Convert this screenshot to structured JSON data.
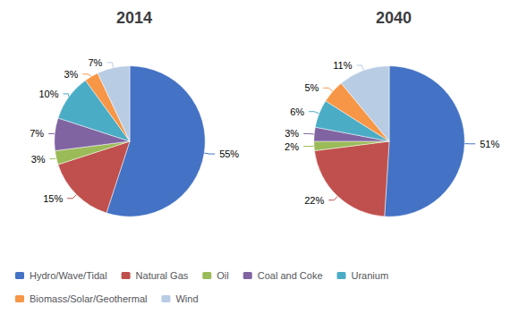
{
  "chart_data": [
    {
      "type": "pie",
      "title": "2014",
      "categories": [
        "Hydro/Wave/Tidal",
        "Natural Gas",
        "Oil",
        "Coal and Coke",
        "Uranium",
        "Biomass/Solar/Geothermal",
        "Wind"
      ],
      "values": [
        55,
        15,
        3,
        7,
        10,
        3,
        7
      ],
      "value_labels": [
        "55%",
        "15%",
        "3%",
        "7%",
        "10%",
        "3%",
        "7%"
      ],
      "colors": [
        "#4472C4",
        "#C0504D",
        "#9BBB59",
        "#8064A2",
        "#4BACC6",
        "#F79646",
        "#B8CCE4"
      ],
      "data_labels": true,
      "legend": "lower left"
    },
    {
      "type": "pie",
      "title": "2040",
      "categories": [
        "Hydro/Wave/Tidal",
        "Natural Gas",
        "Oil",
        "Coal and Coke",
        "Uranium",
        "Biomass/Solar/Geothermal",
        "Wind"
      ],
      "values": [
        51,
        22,
        2,
        3,
        6,
        5,
        11
      ],
      "value_labels": [
        "51%",
        "22%",
        "2%",
        "3%",
        "6%",
        "5%",
        "11%"
      ],
      "colors": [
        "#4472C4",
        "#C0504D",
        "#9BBB59",
        "#8064A2",
        "#4BACC6",
        "#F79646",
        "#B8CCE4"
      ],
      "data_labels": true
    }
  ]
}
